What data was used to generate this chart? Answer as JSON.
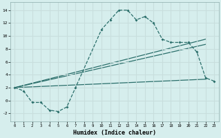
{
  "xlabel": "Humidex (Indice chaleur)",
  "bg_color": "#d6eeed",
  "grid_color": "#c8dedd",
  "line_color": "#2a6e6a",
  "xlim": [
    -0.5,
    23.5
  ],
  "ylim": [
    -3.2,
    15.2
  ],
  "xticks": [
    0,
    1,
    2,
    3,
    4,
    5,
    6,
    7,
    8,
    9,
    10,
    11,
    12,
    13,
    14,
    15,
    16,
    17,
    18,
    19,
    20,
    21,
    22,
    23
  ],
  "yticks": [
    -2,
    0,
    2,
    4,
    6,
    8,
    10,
    12,
    14
  ],
  "curve_x": [
    0,
    1,
    2,
    3,
    4,
    5,
    6,
    7,
    10,
    11,
    12,
    13,
    14,
    15,
    16,
    17,
    18,
    19,
    20,
    21,
    22,
    23
  ],
  "curve_y": [
    2.0,
    1.5,
    -0.3,
    -0.3,
    -1.5,
    -1.7,
    -1.0,
    2.0,
    11.0,
    12.5,
    14.0,
    14.0,
    12.5,
    13.0,
    12.0,
    9.5,
    9.0,
    9.0,
    9.0,
    7.5,
    3.5,
    3.0
  ],
  "line1_x": [
    0,
    22
  ],
  "line1_y": [
    2.0,
    3.3
  ],
  "line2_x": [
    0,
    22
  ],
  "line2_y": [
    2.0,
    8.7
  ],
  "line3_x": [
    0,
    22
  ],
  "line3_y": [
    2.0,
    9.5
  ]
}
